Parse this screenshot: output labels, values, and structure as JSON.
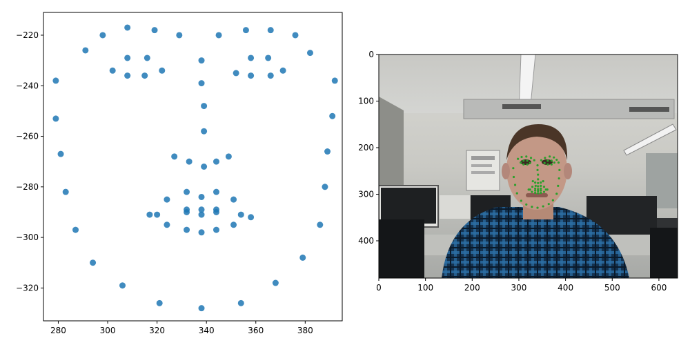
{
  "chart_data": [
    {
      "type": "scatter",
      "marker_color": "#1f77b4",
      "xlim": [
        274,
        395
      ],
      "ylim": [
        -333,
        -211
      ],
      "grid": false,
      "x_ticks": [
        280,
        300,
        320,
        340,
        360,
        380
      ],
      "y_ticks": [
        -220,
        -240,
        -260,
        -280,
        -300,
        -320
      ],
      "points": [
        [
          279,
          -238
        ],
        [
          279,
          -253
        ],
        [
          281,
          -267
        ],
        [
          283,
          -282
        ],
        [
          287,
          -297
        ],
        [
          294,
          -310
        ],
        [
          306,
          -319
        ],
        [
          321,
          -326
        ],
        [
          338,
          -328
        ],
        [
          354,
          -326
        ],
        [
          368,
          -318
        ],
        [
          379,
          -308
        ],
        [
          386,
          -295
        ],
        [
          388,
          -280
        ],
        [
          389,
          -266
        ],
        [
          391,
          -252
        ],
        [
          392,
          -238
        ],
        [
          291,
          -226
        ],
        [
          298,
          -220
        ],
        [
          308,
          -217
        ],
        [
          319,
          -218
        ],
        [
          329,
          -220
        ],
        [
          345,
          -220
        ],
        [
          356,
          -218
        ],
        [
          366,
          -218
        ],
        [
          376,
          -220
        ],
        [
          382,
          -227
        ],
        [
          338,
          -230
        ],
        [
          338,
          -239
        ],
        [
          339,
          -248
        ],
        [
          339,
          -258
        ],
        [
          327,
          -268
        ],
        [
          333,
          -270
        ],
        [
          339,
          -272
        ],
        [
          344,
          -270
        ],
        [
          349,
          -268
        ],
        [
          302,
          -234
        ],
        [
          308,
          -229
        ],
        [
          316,
          -229
        ],
        [
          322,
          -234
        ],
        [
          315,
          -236
        ],
        [
          308,
          -236
        ],
        [
          352,
          -235
        ],
        [
          358,
          -229
        ],
        [
          365,
          -229
        ],
        [
          371,
          -234
        ],
        [
          366,
          -236
        ],
        [
          358,
          -236
        ],
        [
          317,
          -291
        ],
        [
          324,
          -285
        ],
        [
          332,
          -282
        ],
        [
          338,
          -284
        ],
        [
          344,
          -282
        ],
        [
          351,
          -285
        ],
        [
          358,
          -292
        ],
        [
          351,
          -295
        ],
        [
          344,
          -297
        ],
        [
          338,
          -298
        ],
        [
          332,
          -297
        ],
        [
          324,
          -295
        ],
        [
          320,
          -291
        ],
        [
          332,
          -289
        ],
        [
          338,
          -289
        ],
        [
          344,
          -289
        ],
        [
          354,
          -291
        ],
        [
          344,
          -290
        ],
        [
          338,
          -291
        ],
        [
          332,
          -290
        ]
      ]
    },
    {
      "type": "image",
      "image_alt": "webcam frame: man with facial landmark points",
      "image_size": [
        640,
        480
      ],
      "xlim": [
        0,
        640
      ],
      "ylim": [
        480,
        0
      ],
      "x_ticks": [
        0,
        100,
        200,
        300,
        400,
        500,
        600
      ],
      "y_ticks": [
        0,
        100,
        200,
        300,
        400
      ],
      "landmark_color": "#2ca02c",
      "landmarks": [
        [
          288,
          244
        ],
        [
          289,
          263
        ],
        [
          292,
          280
        ],
        [
          296,
          298
        ],
        [
          305,
          314
        ],
        [
          316,
          322
        ],
        [
          328,
          327
        ],
        [
          340,
          329
        ],
        [
          352,
          326
        ],
        [
          364,
          321
        ],
        [
          373,
          313
        ],
        [
          381,
          299
        ],
        [
          384,
          282
        ],
        [
          386,
          266
        ],
        [
          387,
          248
        ],
        [
          385,
          232
        ],
        [
          298,
          224
        ],
        [
          306,
          220
        ],
        [
          316,
          219
        ],
        [
          326,
          222
        ],
        [
          333,
          227
        ],
        [
          348,
          227
        ],
        [
          356,
          222
        ],
        [
          366,
          219
        ],
        [
          375,
          221
        ],
        [
          381,
          226
        ],
        [
          340,
          238
        ],
        [
          340,
          248
        ],
        [
          341,
          258
        ],
        [
          341,
          268
        ],
        [
          330,
          272
        ],
        [
          335,
          275
        ],
        [
          341,
          276
        ],
        [
          347,
          275
        ],
        [
          352,
          272
        ],
        [
          304,
          232
        ],
        [
          310,
          228
        ],
        [
          318,
          228
        ],
        [
          324,
          233
        ],
        [
          318,
          236
        ],
        [
          310,
          236
        ],
        [
          355,
          233
        ],
        [
          362,
          228
        ],
        [
          370,
          228
        ],
        [
          376,
          232
        ],
        [
          370,
          236
        ],
        [
          362,
          236
        ],
        [
          321,
          290
        ],
        [
          329,
          284
        ],
        [
          336,
          282
        ],
        [
          341,
          283
        ],
        [
          347,
          282
        ],
        [
          354,
          284
        ],
        [
          361,
          290
        ],
        [
          354,
          295
        ],
        [
          347,
          297
        ],
        [
          341,
          298
        ],
        [
          335,
          297
        ],
        [
          328,
          295
        ],
        [
          324,
          290
        ],
        [
          335,
          288
        ],
        [
          341,
          289
        ],
        [
          347,
          288
        ],
        [
          358,
          290
        ],
        [
          347,
          292
        ],
        [
          341,
          293
        ],
        [
          335,
          292
        ]
      ]
    }
  ]
}
